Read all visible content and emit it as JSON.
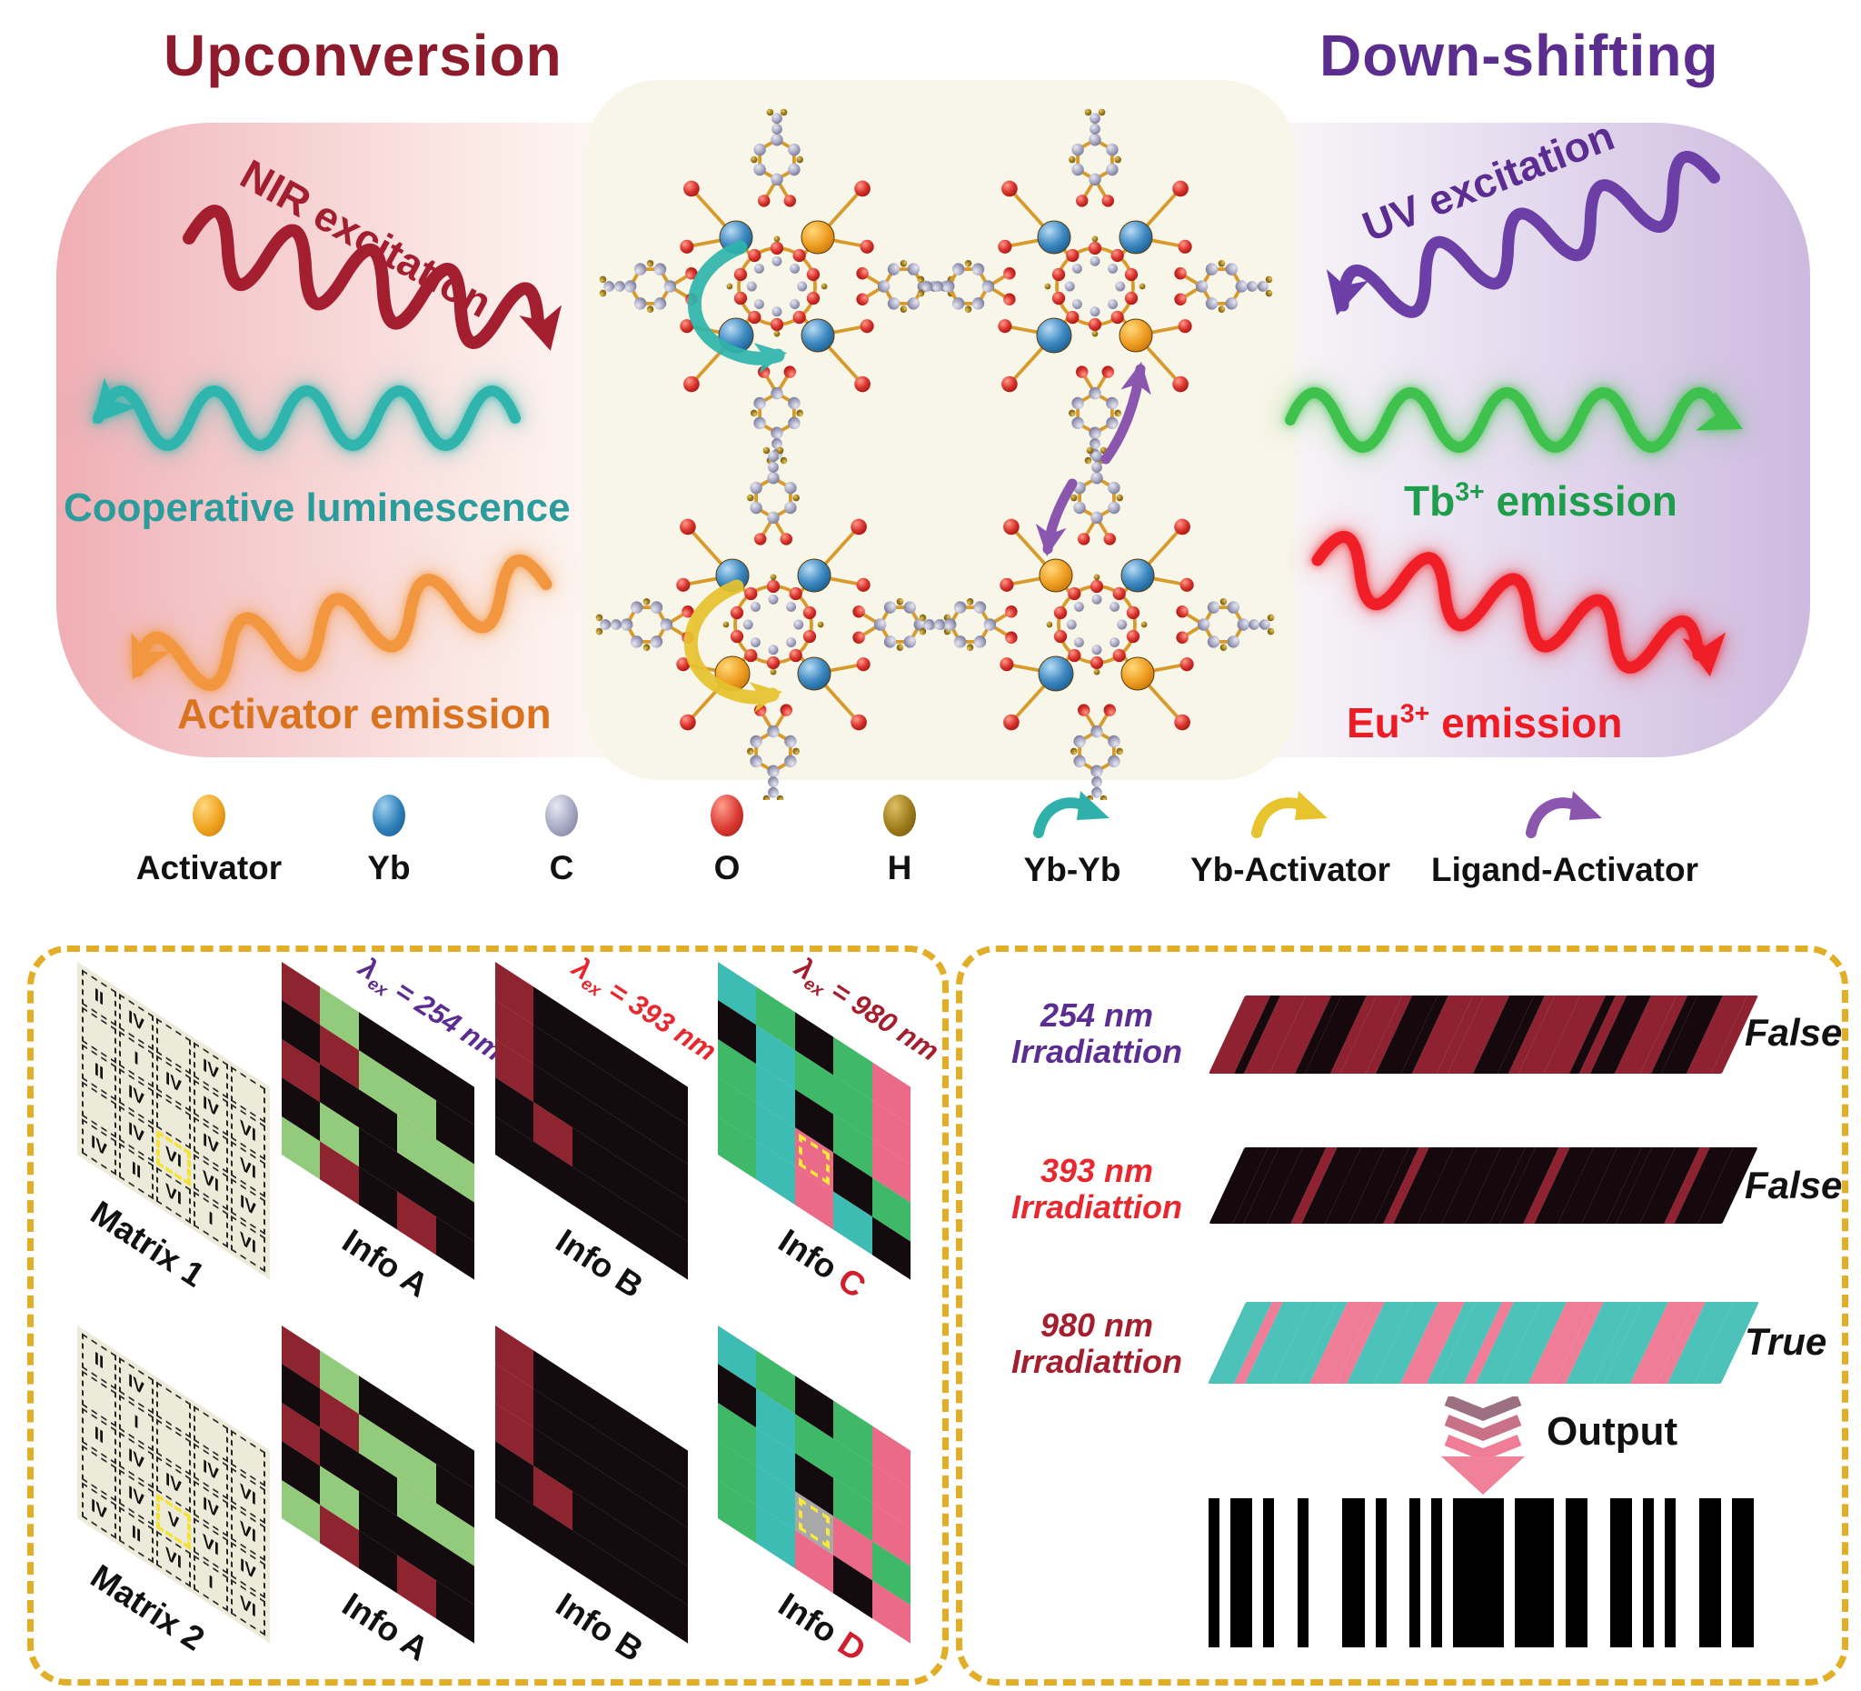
{
  "header": {
    "left_title": "Upconversion",
    "right_title": "Down-shifting"
  },
  "upconversion": {
    "excitation_label": "NIR excitation",
    "emission1": "Cooperative luminescence",
    "emission2": "Activator emission"
  },
  "downshifting": {
    "excitation_label": "UV excitation",
    "emission1": {
      "element": "Tb",
      "charge": "3+",
      "word": " emission"
    },
    "emission2": {
      "element": "Eu",
      "charge": "3+",
      "word": " emission"
    }
  },
  "colors": {
    "upconversion_title": "#8e1b2c",
    "downshifting_title": "#5b2d8e",
    "nir": "#a31f30",
    "cooperative": "#2fb5ad",
    "activator_emission": "#f2973f",
    "uv": "#6b3fa5",
    "tb_emission": "#3fc24d",
    "eu_emission": "#f01e26",
    "panel_border": "#e2ae28"
  },
  "legend": {
    "atoms": [
      {
        "name": "Activator",
        "color_id": "activator"
      },
      {
        "name": "Yb",
        "color_id": "yb"
      },
      {
        "name": "C",
        "color_id": "c"
      },
      {
        "name": "O",
        "color_id": "o"
      },
      {
        "name": "H",
        "color_id": "h"
      }
    ],
    "transfers": [
      {
        "name": "Yb-Yb",
        "color": "#2fb0aa"
      },
      {
        "name": "Yb-Activator",
        "color": "#e7c32e"
      },
      {
        "name": "Ligand-Activator",
        "color": "#8a56ae"
      }
    ]
  },
  "cell_colors": {
    "r": "#8e2430",
    "k": "#140b0e",
    "g": "#93cb7c",
    "e": "#3fb868",
    "t": "#3cbcb2",
    "p": "#ea6a88",
    "s": "#a8a8a8"
  },
  "stripe_colors": {
    "r": "#8e2231",
    "k": "#16090d",
    "t": "#4cc2b8",
    "p": "#f07d98"
  },
  "matrix_panel": {
    "items": [
      {
        "type": "matrix",
        "label": "Matrix 1",
        "highlight": 17,
        "cells": [
          "II",
          "IV",
          "",
          "IV",
          "",
          "",
          "I",
          "IV",
          "IV",
          "VI",
          "II",
          "IV",
          "",
          "IV",
          "VI",
          "",
          "IV",
          "VI",
          "VI",
          "IV",
          "IV",
          "II",
          "VI",
          "I",
          "VI"
        ]
      },
      {
        "type": "info",
        "label": "Info ",
        "accent": "A",
        "accent_color": "#111111",
        "lambda": {
          "sym": "λ",
          "sub": "ex",
          "value": " = 254 nm"
        },
        "lambda_color": "#5c2d91",
        "cells": "rgkkkkrggkrkkggkgkkkgrkrk"
      },
      {
        "type": "info",
        "label": "Info ",
        "accent": "B",
        "accent_color": "#111111",
        "lambda": {
          "sym": "λ",
          "sub": "ex",
          "value": " = 393 nm"
        },
        "lambda_color": "#e8282e",
        "cells": "rkkkkrkkkkrkkkkkrkkkkkkkk"
      },
      {
        "type": "info",
        "label": "Info ",
        "accent": "C",
        "accent_color": "#d01f2e",
        "lambda": {
          "sym": "λ",
          "sub": "ex",
          "value": " = 980 nm"
        },
        "lambda_color": "#a41e2e",
        "cells": "tekepkteepetkepetPkeetptk"
      },
      {
        "type": "matrix",
        "label": "Matrix 2",
        "highlight": 17,
        "cells": [
          "II",
          "IV",
          "",
          "",
          "",
          "",
          "I",
          "",
          "IV",
          "VI",
          "II",
          "IV",
          "IV",
          "IV",
          "VI",
          "",
          "IV",
          "V",
          "VI",
          "IV",
          "IV",
          "II",
          "VI",
          "I",
          "VI"
        ]
      },
      {
        "type": "info",
        "label": "Info ",
        "accent": "A",
        "accent_color": "#111111",
        "cells": "rgkkkkrggkrkkggkgkkkgrkrk"
      },
      {
        "type": "info",
        "label": "Info ",
        "accent": "B",
        "accent_color": "#111111",
        "cells": "rkkkkrkkkkrkkkkkrkkkkkkkk"
      },
      {
        "type": "info",
        "label": "Info ",
        "accent": "D",
        "accent_color": "#d01f2e",
        "cells": "tekepkteepetkepetSpeetpkp"
      }
    ]
  },
  "barcode_panel": {
    "rows": [
      {
        "line1": "254 nm",
        "line2": "Irradiattion",
        "color": "#5c2d91",
        "verdict": "False",
        "stripes": "RkRRkKrRrKkRrRKkrRRkrKRrkKRr"
      },
      {
        "line1": "393 nm",
        "line2": "Irradiattion",
        "color": "#e8282e",
        "verdict": "False",
        "stripes": "KkKKrKKKkrKKKKkKrKKKkKKrKK"
      },
      {
        "line1": "980 nm",
        "line2": "Irradiattion",
        "color": "#a41e2e",
        "verdict": "True",
        "stripes": "TpTTtPpTTPtTpTTPpTtTPpTT"
      }
    ],
    "output_label": "Output",
    "barcode": "bwbbwbWbwWbbwbWbwbwbbBwBbwbbWbbwbwbWbbwbb"
  }
}
